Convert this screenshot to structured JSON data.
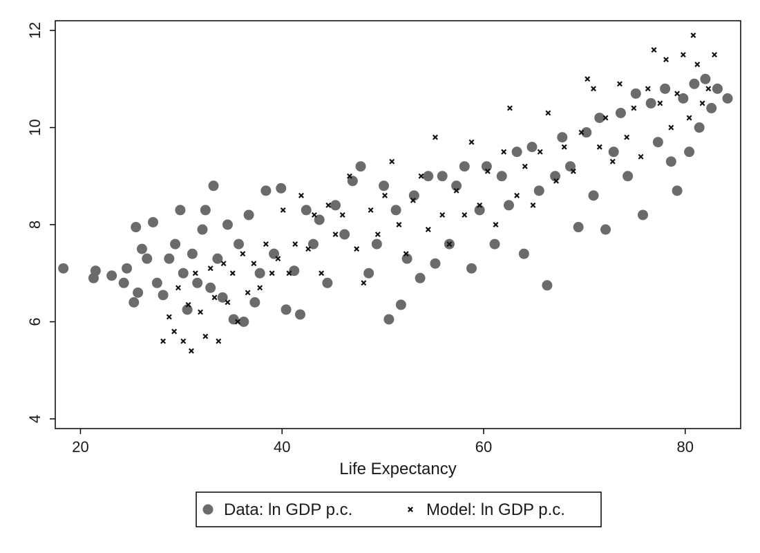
{
  "chart_data": {
    "type": "scatter",
    "title": "",
    "xlabel": "Life Expectancy",
    "ylabel": "",
    "xlim": [
      17.5,
      85.5
    ],
    "ylim": [
      3.8,
      12.2
    ],
    "x_ticks": [
      20,
      40,
      60,
      80
    ],
    "y_ticks": [
      4,
      6,
      8,
      10,
      12
    ],
    "grid": false,
    "legend_position": "bottom",
    "colors": {
      "data": "#6b6b6b",
      "model": "#111111"
    },
    "series": [
      {
        "name": "Data: ln GDP p.c.",
        "marker": "circle",
        "points": [
          [
            18.3,
            7.1
          ],
          [
            21.3,
            6.9
          ],
          [
            21.5,
            7.05
          ],
          [
            23.1,
            6.95
          ],
          [
            24.3,
            6.8
          ],
          [
            24.6,
            7.1
          ],
          [
            25.3,
            6.4
          ],
          [
            25.5,
            7.95
          ],
          [
            25.7,
            6.6
          ],
          [
            26.1,
            7.5
          ],
          [
            26.6,
            7.3
          ],
          [
            27.2,
            8.05
          ],
          [
            27.6,
            6.8
          ],
          [
            28.2,
            6.55
          ],
          [
            28.8,
            7.3
          ],
          [
            29.4,
            7.6
          ],
          [
            29.9,
            8.3
          ],
          [
            30.2,
            7.0
          ],
          [
            30.6,
            6.25
          ],
          [
            31.1,
            7.4
          ],
          [
            31.6,
            6.8
          ],
          [
            32.1,
            7.9
          ],
          [
            32.4,
            8.3
          ],
          [
            32.9,
            6.7
          ],
          [
            33.2,
            8.8
          ],
          [
            33.6,
            7.3
          ],
          [
            34.1,
            6.5
          ],
          [
            34.6,
            8.0
          ],
          [
            35.2,
            6.05
          ],
          [
            35.7,
            7.6
          ],
          [
            36.2,
            6.0
          ],
          [
            36.7,
            8.2
          ],
          [
            37.3,
            6.4
          ],
          [
            37.8,
            7.0
          ],
          [
            38.4,
            8.7
          ],
          [
            39.2,
            7.4
          ],
          [
            39.9,
            8.75
          ],
          [
            40.4,
            6.25
          ],
          [
            41.2,
            7.05
          ],
          [
            41.8,
            6.15
          ],
          [
            42.4,
            8.3
          ],
          [
            43.1,
            7.6
          ],
          [
            43.7,
            8.1
          ],
          [
            44.5,
            6.8
          ],
          [
            45.3,
            8.4
          ],
          [
            46.2,
            7.8
          ],
          [
            47.0,
            8.9
          ],
          [
            47.8,
            9.2
          ],
          [
            48.6,
            7.0
          ],
          [
            49.4,
            7.6
          ],
          [
            50.1,
            8.8
          ],
          [
            50.6,
            6.05
          ],
          [
            51.3,
            8.3
          ],
          [
            51.8,
            6.35
          ],
          [
            52.4,
            7.3
          ],
          [
            53.1,
            8.6
          ],
          [
            53.7,
            6.9
          ],
          [
            54.5,
            9.0
          ],
          [
            55.2,
            7.2
          ],
          [
            55.9,
            9.0
          ],
          [
            56.6,
            7.6
          ],
          [
            57.3,
            8.8
          ],
          [
            58.1,
            9.2
          ],
          [
            58.8,
            7.1
          ],
          [
            59.6,
            8.3
          ],
          [
            60.3,
            9.2
          ],
          [
            61.1,
            7.6
          ],
          [
            61.8,
            9.0
          ],
          [
            62.5,
            8.4
          ],
          [
            63.3,
            9.5
          ],
          [
            64.0,
            7.4
          ],
          [
            64.8,
            9.6
          ],
          [
            65.5,
            8.7
          ],
          [
            66.3,
            6.75
          ],
          [
            67.1,
            9.0
          ],
          [
            67.8,
            9.8
          ],
          [
            68.6,
            9.2
          ],
          [
            69.4,
            7.95
          ],
          [
            70.2,
            9.9
          ],
          [
            70.9,
            8.6
          ],
          [
            71.5,
            10.2
          ],
          [
            72.1,
            7.9
          ],
          [
            72.9,
            9.5
          ],
          [
            73.6,
            10.3
          ],
          [
            74.3,
            9.0
          ],
          [
            75.1,
            10.7
          ],
          [
            75.8,
            8.2
          ],
          [
            76.6,
            10.5
          ],
          [
            77.3,
            9.7
          ],
          [
            78.0,
            10.8
          ],
          [
            78.6,
            9.3
          ],
          [
            79.2,
            8.7
          ],
          [
            79.8,
            10.6
          ],
          [
            80.4,
            9.5
          ],
          [
            80.9,
            10.9
          ],
          [
            81.4,
            10.0
          ],
          [
            82.0,
            11.0
          ],
          [
            82.6,
            10.4
          ],
          [
            83.2,
            10.8
          ],
          [
            84.2,
            10.6
          ]
        ]
      },
      {
        "name": "Model: ln GDP p.c.",
        "marker": "x",
        "points": [
          [
            28.2,
            5.6
          ],
          [
            28.8,
            6.1
          ],
          [
            29.3,
            5.8
          ],
          [
            29.7,
            6.7
          ],
          [
            30.2,
            5.6
          ],
          [
            30.7,
            6.35
          ],
          [
            31.0,
            5.4
          ],
          [
            31.4,
            7.0
          ],
          [
            31.9,
            6.2
          ],
          [
            32.4,
            5.7
          ],
          [
            32.9,
            7.1
          ],
          [
            33.3,
            6.5
          ],
          [
            33.7,
            5.6
          ],
          [
            34.2,
            7.2
          ],
          [
            34.6,
            6.4
          ],
          [
            35.1,
            7.0
          ],
          [
            35.6,
            6.0
          ],
          [
            36.1,
            7.4
          ],
          [
            36.6,
            6.6
          ],
          [
            37.2,
            7.2
          ],
          [
            37.8,
            6.7
          ],
          [
            38.4,
            7.6
          ],
          [
            39.0,
            7.0
          ],
          [
            39.6,
            7.3
          ],
          [
            40.1,
            8.3
          ],
          [
            40.7,
            7.0
          ],
          [
            41.3,
            7.6
          ],
          [
            41.9,
            8.6
          ],
          [
            42.6,
            7.5
          ],
          [
            43.2,
            8.2
          ],
          [
            43.9,
            7.0
          ],
          [
            44.6,
            8.4
          ],
          [
            45.3,
            7.8
          ],
          [
            46.0,
            8.2
          ],
          [
            46.7,
            9.0
          ],
          [
            47.4,
            7.5
          ],
          [
            48.1,
            6.8
          ],
          [
            48.8,
            8.3
          ],
          [
            49.5,
            7.8
          ],
          [
            50.2,
            8.6
          ],
          [
            50.9,
            9.3
          ],
          [
            51.6,
            8.0
          ],
          [
            52.3,
            7.4
          ],
          [
            53.0,
            8.5
          ],
          [
            53.8,
            9.0
          ],
          [
            54.5,
            7.9
          ],
          [
            55.2,
            9.8
          ],
          [
            55.9,
            8.2
          ],
          [
            56.6,
            7.6
          ],
          [
            57.3,
            8.7
          ],
          [
            58.1,
            8.2
          ],
          [
            58.8,
            9.7
          ],
          [
            59.6,
            8.4
          ],
          [
            60.4,
            9.1
          ],
          [
            61.2,
            8.0
          ],
          [
            62.0,
            9.5
          ],
          [
            62.6,
            10.4
          ],
          [
            63.3,
            8.6
          ],
          [
            64.1,
            9.2
          ],
          [
            64.9,
            8.4
          ],
          [
            65.6,
            9.5
          ],
          [
            66.4,
            10.3
          ],
          [
            67.2,
            8.9
          ],
          [
            68.0,
            9.6
          ],
          [
            68.9,
            9.1
          ],
          [
            69.7,
            9.9
          ],
          [
            70.3,
            11.0
          ],
          [
            70.9,
            10.8
          ],
          [
            71.5,
            9.6
          ],
          [
            72.1,
            10.2
          ],
          [
            72.8,
            9.3
          ],
          [
            73.5,
            10.9
          ],
          [
            74.2,
            9.8
          ],
          [
            74.9,
            10.4
          ],
          [
            75.6,
            9.4
          ],
          [
            76.3,
            10.8
          ],
          [
            76.9,
            11.6
          ],
          [
            77.5,
            10.5
          ],
          [
            78.1,
            11.4
          ],
          [
            78.6,
            10.0
          ],
          [
            79.2,
            10.7
          ],
          [
            79.8,
            11.5
          ],
          [
            80.4,
            10.2
          ],
          [
            80.8,
            11.9
          ],
          [
            81.2,
            11.3
          ],
          [
            81.7,
            10.5
          ],
          [
            82.3,
            10.8
          ],
          [
            82.9,
            11.5
          ]
        ]
      }
    ]
  }
}
